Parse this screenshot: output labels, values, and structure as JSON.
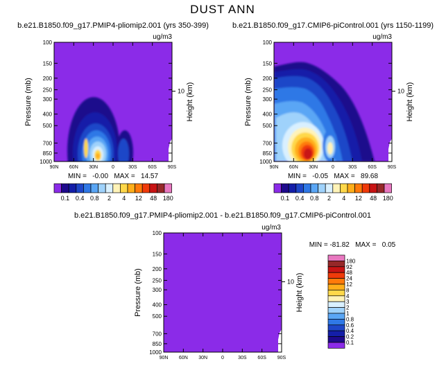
{
  "figure": {
    "title": "DUST ANN"
  },
  "chart_data": [
    {
      "type": "heatmap",
      "title": "b.e21.B1850.f09_g17.PMIP4-pliomip2.001 (yrs 350-399)",
      "units": "ug/m3",
      "ylabel": "Pressure (mb)",
      "ylabel_right": "Height (km)",
      "x_ticks": [
        "90N",
        "60N",
        "30N",
        "0",
        "30S",
        "60S",
        "90S"
      ],
      "y_ticks": [
        "100",
        "150",
        "200",
        "250",
        "300",
        "400",
        "500",
        "700",
        "850",
        "1000"
      ],
      "right_ticks": [
        "10"
      ],
      "stats": "MIN =   -0.00   MAX =   14.57",
      "min": -0.0,
      "max": 14.57,
      "colorbar_labels": [
        "0.1",
        "0.4",
        "0.8",
        "2",
        "4",
        "12",
        "48",
        "180"
      ]
    },
    {
      "type": "heatmap",
      "title": "b.e21.B1850.f09_g17.CMIP6-piControl.001 (yrs 1150-1199)",
      "units": "ug/m3",
      "ylabel": "Pressure (mb)",
      "ylabel_right": "Height (km)",
      "x_ticks": [
        "90N",
        "60N",
        "30N",
        "0",
        "30S",
        "60S",
        "90S"
      ],
      "y_ticks": [
        "100",
        "150",
        "200",
        "250",
        "300",
        "400",
        "500",
        "700",
        "850",
        "1000"
      ],
      "right_ticks": [
        "10"
      ],
      "stats": "MIN =   -0.05   MAX =   89.68",
      "min": -0.05,
      "max": 89.68,
      "colorbar_labels": [
        "0.1",
        "0.4",
        "0.8",
        "2",
        "4",
        "12",
        "48",
        "180"
      ]
    },
    {
      "type": "heatmap",
      "title": "b.e21.B1850.f09_g17.PMIP4-pliomip2.001 - b.e21.B1850.f09_g17.CMIP6-piControl.001",
      "units": "ug/m3",
      "ylabel": "Pressure (mb)",
      "ylabel_right": "Height (km)",
      "x_ticks": [
        "90N",
        "60N",
        "30N",
        "0",
        "30S",
        "60S",
        "90S"
      ],
      "y_ticks": [
        "100",
        "150",
        "200",
        "250",
        "300",
        "400",
        "500",
        "700",
        "850",
        "1000"
      ],
      "right_ticks": [
        "10"
      ],
      "stats": "MIN = -81.82   MAX =   0.05",
      "min": -81.82,
      "max": 0.05,
      "colorbar_labels": [
        "180",
        "92",
        "48",
        "24",
        "12",
        "8",
        "4",
        "3",
        "2",
        "1",
        "0.8",
        "0.6",
        "0.4",
        "0.2",
        "0.1"
      ]
    }
  ],
  "colors": {
    "background_fill": "#8b2be8",
    "scale": [
      "#8b2be8",
      "#1e0a8c",
      "#141ea8",
      "#1e46c8",
      "#2f78e6",
      "#5aa6f5",
      "#9fd2fb",
      "#d9f0ff",
      "#fff3b8",
      "#ffd84a",
      "#ffae1a",
      "#ff7a0a",
      "#f03a0a",
      "#c81414",
      "#962828",
      "#e878c0"
    ]
  }
}
